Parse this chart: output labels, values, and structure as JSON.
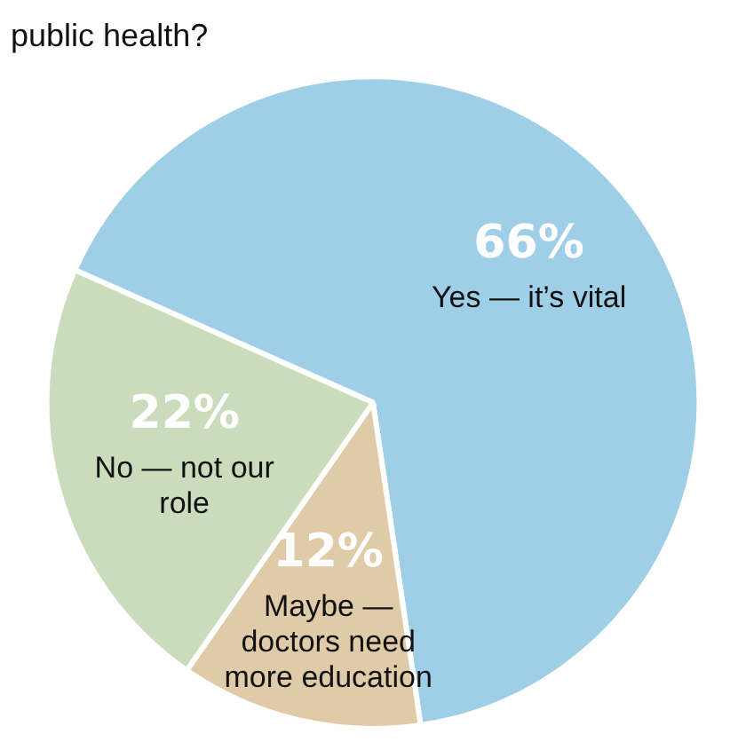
{
  "chart_data": {
    "type": "pie",
    "title": "public health?",
    "categories": [
      "Yes — it’s vital",
      "Maybe — doctors need more education",
      "No — not our role"
    ],
    "values": [
      66,
      12,
      22
    ],
    "colors": [
      "#9ecfe7",
      "#e0cba8",
      "#cadcbb"
    ],
    "value_labels": [
      "66%",
      "12%",
      "22%"
    ],
    "legend": false
  }
}
